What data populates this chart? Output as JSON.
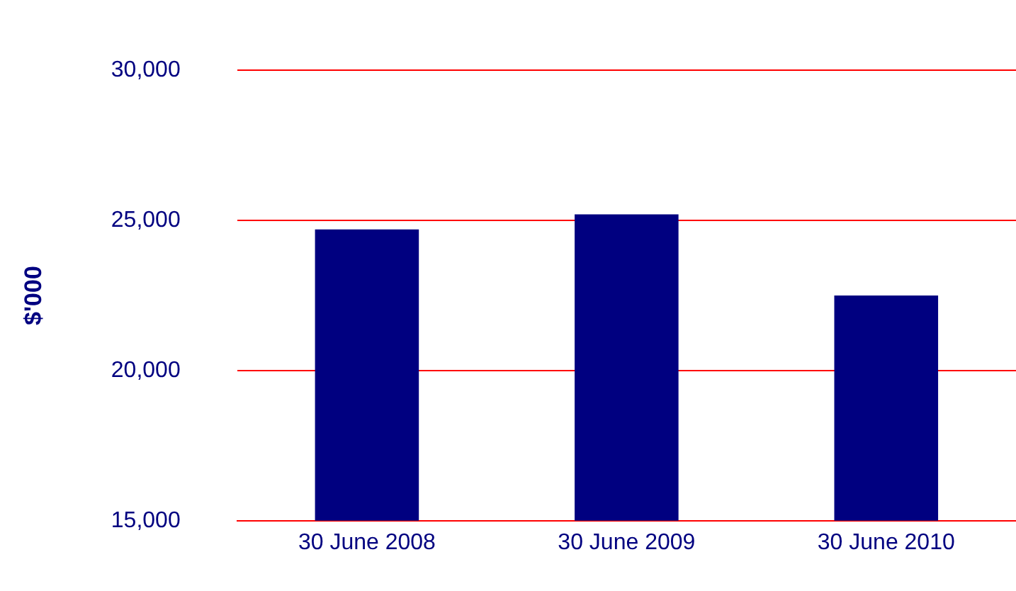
{
  "chart_data": {
    "type": "bar",
    "ylabel": "$'000",
    "categories": [
      "30 June 2008",
      "30 June 2009",
      "30 June 2010"
    ],
    "values": [
      24700,
      25200,
      22500
    ],
    "color": "#000080",
    "ylim": [
      15000,
      30000
    ],
    "yticks": [
      {
        "value": 15000,
        "label": "15,000"
      },
      {
        "value": 20000,
        "label": "20,000"
      },
      {
        "value": 25000,
        "label": "25,000"
      },
      {
        "value": 30000,
        "label": "30,000"
      }
    ],
    "grid": "y"
  }
}
